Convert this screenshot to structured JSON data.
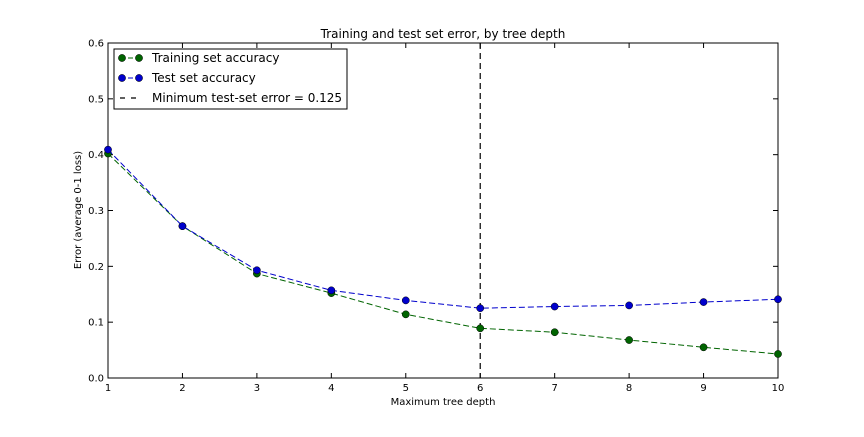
{
  "chart_data": {
    "type": "line",
    "title": "Training and test set error, by tree depth",
    "xlabel": "Maximum tree depth",
    "ylabel": "Error (average 0-1 loss)",
    "xlim": [
      1,
      10
    ],
    "ylim": [
      0.0,
      0.6
    ],
    "x_ticks": [
      "1",
      "2",
      "3",
      "4",
      "5",
      "6",
      "7",
      "8",
      "9",
      "10"
    ],
    "y_ticks": [
      "0.0",
      "0.1",
      "0.2",
      "0.3",
      "0.4",
      "0.5",
      "0.6"
    ],
    "grid": false,
    "legend_position": "top-left",
    "x": [
      1,
      2,
      3,
      4,
      5,
      6,
      7,
      8,
      9,
      10
    ],
    "series": [
      {
        "name": "Training set accuracy",
        "color": "#006400",
        "line_style": "dashed",
        "marker": "circle",
        "values": [
          0.402,
          0.272,
          0.187,
          0.152,
          0.114,
          0.089,
          0.082,
          0.068,
          0.055,
          0.043
        ]
      },
      {
        "name": "Test set accuracy",
        "color": "#0000cc",
        "line_style": "dashed",
        "marker": "circle",
        "values": [
          0.409,
          0.272,
          0.193,
          0.157,
          0.139,
          0.125,
          0.128,
          0.13,
          0.136,
          0.141
        ]
      }
    ],
    "vline": {
      "x": 6,
      "label": "Minimum test-set error = 0.125",
      "color": "#000000",
      "line_style": "dashed"
    }
  }
}
